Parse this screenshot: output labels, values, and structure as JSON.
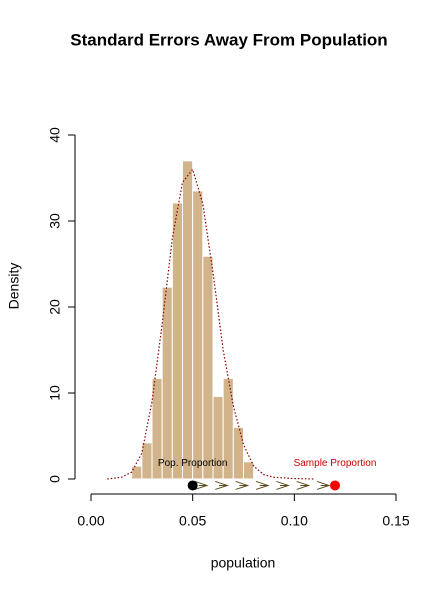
{
  "chart_data": {
    "type": "histogram",
    "title": "Standard Errors Away From Population",
    "xlabel": "population",
    "ylabel": "Density",
    "bins": [
      0.02,
      0.025,
      0.03,
      0.035,
      0.04,
      0.045,
      0.05,
      0.055,
      0.06,
      0.065,
      0.07,
      0.075,
      0.08
    ],
    "values": [
      1.5,
      4.2,
      11.7,
      22.3,
      32.1,
      37.0,
      33.5,
      25.9,
      9.6,
      11.7,
      6.0,
      2.0
    ],
    "color": "#d2b48c",
    "density_curve": {
      "color": "#8b0000",
      "x": [
        0.008,
        0.015,
        0.02,
        0.025,
        0.03,
        0.035,
        0.04,
        0.045,
        0.05,
        0.055,
        0.06,
        0.065,
        0.07,
        0.075,
        0.08,
        0.085,
        0.09,
        0.1,
        0.11
      ],
      "y": [
        0,
        0.2,
        0.8,
        3,
        9,
        18,
        28,
        34.5,
        36,
        32,
        24,
        15,
        8.5,
        4,
        1.5,
        0.5,
        0.2,
        0.05,
        0
      ]
    },
    "points": [
      {
        "label": "Pop. Proportion",
        "x": 0.05,
        "y": -0.75,
        "color": "#000000",
        "label_color": "#000000"
      },
      {
        "label": "Sample Proportion",
        "x": 0.12,
        "y": -0.75,
        "color": "#ff0000",
        "label_color": "#cc0000"
      }
    ],
    "arrows": {
      "x": [
        0.05,
        0.06,
        0.07,
        0.08,
        0.09,
        0.1,
        0.11,
        0.12
      ],
      "y": -0.75,
      "color": "#5a4a1a"
    },
    "xlim": [
      0,
      0.15
    ],
    "xticks": [
      {
        "value": 0,
        "label": "0.00"
      },
      {
        "value": 0.05,
        "label": "0.05"
      },
      {
        "value": 0.1,
        "label": "0.10"
      },
      {
        "value": 0.15,
        "label": "0.15"
      }
    ],
    "ylim": [
      0,
      40
    ],
    "yticks": [
      0,
      10,
      20,
      30,
      40
    ]
  }
}
